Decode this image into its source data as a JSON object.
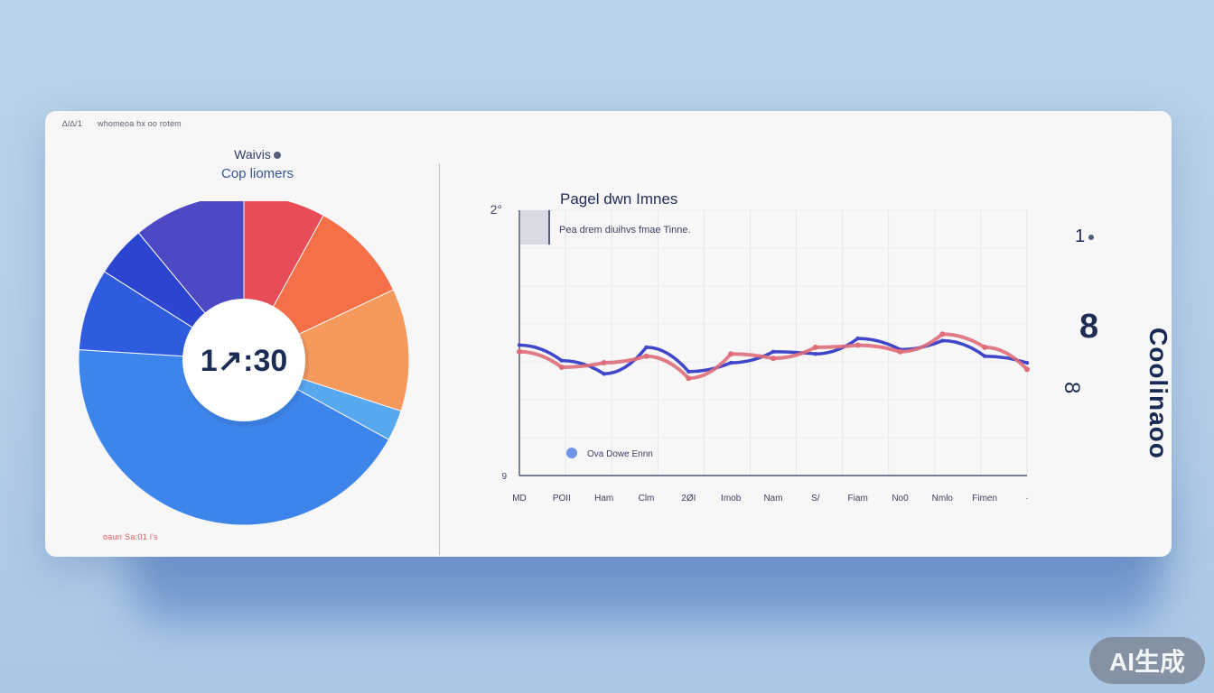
{
  "watermark": "AI生成",
  "header": {
    "top_left_a": "∆/∆/1",
    "top_left_b": "whomeoa hx oo rotem"
  },
  "left_panel": {
    "title_line1": "Waivis",
    "title_line2": "Cop liomers",
    "center_value": "1↗:30",
    "footer": "oaun Sa:01 l’s"
  },
  "main_panel": {
    "title": "Pagel dwn Imnes",
    "subtitle": "Pea drem diuihvs fmae Tinne.",
    "legend": "Ova Dowe Ennn"
  },
  "right_panel": {
    "stat1": "1",
    "stat2": "8",
    "stat3": "8",
    "vertical_label": "Coolinaoo"
  },
  "chart_data": [
    {
      "type": "pie",
      "title": "",
      "center_label": "1↗:30",
      "categories": [
        "Red",
        "Orange",
        "Light Orange",
        "Light Blue",
        "Blue",
        "Deep Blue",
        "Indigo",
        "Purple"
      ],
      "values": [
        8,
        10,
        12,
        3,
        43,
        8,
        5,
        11
      ],
      "colors": [
        "#e84c56",
        "#f56f47",
        "#f6995c",
        "#58a8f0",
        "#3d85ea",
        "#2f5cdf",
        "#2b45d1",
        "#4d49c4"
      ]
    },
    {
      "type": "line",
      "title": "Pagel dwn Imnes",
      "subtitle": "Pea drem diuihvs fmae Tinne.",
      "x": [
        "MD",
        "POII",
        "Ham",
        "Clm",
        "2ØI",
        "Imob",
        "Nam",
        "S/",
        "Fiam",
        "No0",
        "Nmlo",
        "Fimen",
        "·"
      ],
      "y_ticks": [
        "2°",
        "",
        "",
        "",
        "",
        "",
        "",
        "",
        "",
        "9"
      ],
      "series": [
        {
          "name": "Ova Dowe Ennn",
          "color": "#3f46c9",
          "values": [
            2.95,
            2.6,
            2.3,
            2.9,
            2.35,
            2.55,
            2.8,
            2.75,
            3.1,
            2.85,
            3.05,
            2.7,
            2.55
          ]
        },
        {
          "name": "",
          "color": "#de6d79",
          "values": [
            2.8,
            2.45,
            2.55,
            2.7,
            2.2,
            2.75,
            2.65,
            2.9,
            2.95,
            2.8,
            3.2,
            2.9,
            2.4
          ]
        }
      ],
      "ylim": [
        0,
        6
      ],
      "grid": true,
      "legend_position": "bottom-left"
    }
  ]
}
